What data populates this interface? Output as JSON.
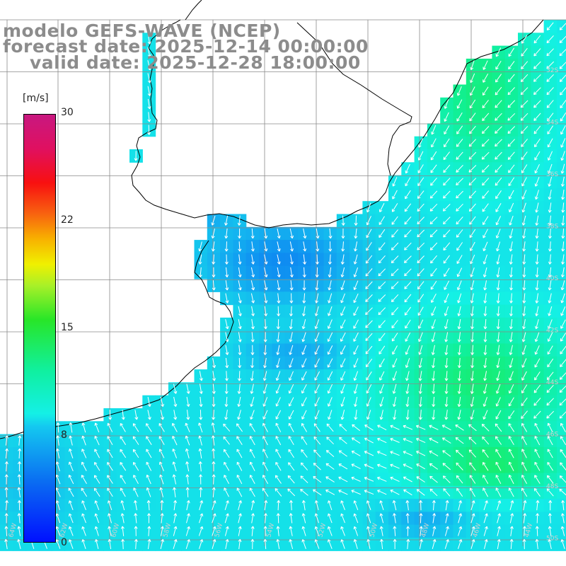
{
  "title": {
    "line1": "modelo GEFS-WAVE (NCEP)",
    "line2": "forecast date: 2025-12-14 00:00:00",
    "line3": "valid date: 2025-12-28 18:00:00"
  },
  "legend": {
    "unit": "[m/s]",
    "ticks": [
      "30",
      "22",
      "15",
      "8",
      "0"
    ],
    "min": 0,
    "max": 30
  },
  "grid": {
    "lon_labels": [
      "64W",
      "62W",
      "60W",
      "58W",
      "56W",
      "54W",
      "52W",
      "50W",
      "48W",
      "46W",
      "44W"
    ],
    "lat_labels": [
      "32S",
      "34S",
      "36S",
      "38S",
      "40S",
      "42S",
      "44S",
      "46S",
      "48S",
      "50S",
      "52S"
    ]
  },
  "colors": {
    "land": "#ffffff",
    "grid_line": "#8a8a8a",
    "coast": "#000000",
    "arrow": "#ffffff",
    "title_text": "#8c8c8c"
  }
}
